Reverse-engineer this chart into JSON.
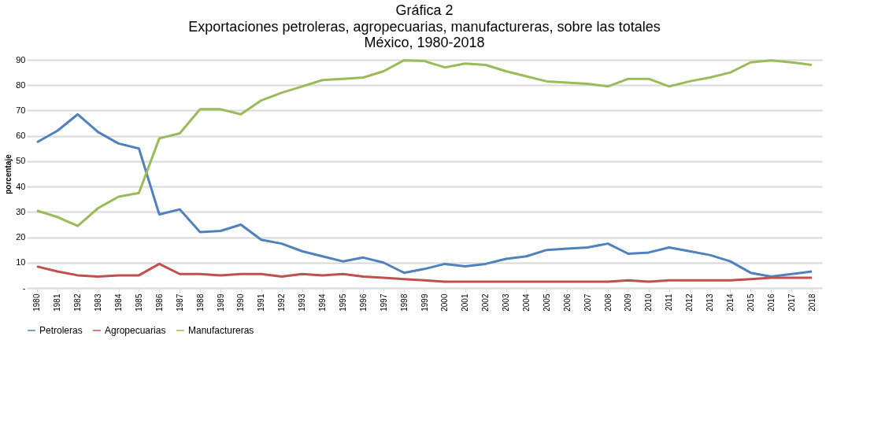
{
  "chart_data": {
    "type": "line",
    "title": "Gráfica 2",
    "subtitle": "Exportaciones petroleras, agropecuarias, manufactureras, sobre las totales\nMéxico, 1980-2018",
    "ylabel": "porcentaje",
    "categories": [
      "1980",
      "1981",
      "1982",
      "1983",
      "1984",
      "1985",
      "1986",
      "1987",
      "1988",
      "1989",
      "1990",
      "1991",
      "1992",
      "1993",
      "1994",
      "1995",
      "1996",
      "1997",
      "1998",
      "1999",
      "2000",
      "2001",
      "2002",
      "2003",
      "2004",
      "2005",
      "2006",
      "2007",
      "2008",
      "2009",
      "2010",
      "2011",
      "2012",
      "2013",
      "2014",
      "2015",
      "2016",
      "2017",
      "2018"
    ],
    "series": [
      {
        "name": "Petroleras",
        "color": "#4f81bd",
        "values": [
          57.5,
          62,
          68.5,
          61.5,
          57,
          55,
          29,
          31,
          22,
          22.5,
          25,
          19,
          17.5,
          14.5,
          12.5,
          10.5,
          12,
          10,
          6,
          7.5,
          9.5,
          8.5,
          9.5,
          11.5,
          12.5,
          15,
          15.5,
          16,
          17.5,
          13.5,
          14,
          16,
          14.5,
          13,
          10.5,
          6,
          4.5,
          5.5,
          6.5
        ]
      },
      {
        "name": "Agropecuarias",
        "color": "#c0504d",
        "values": [
          8.5,
          6.5,
          5,
          4.5,
          5,
          5,
          9.5,
          5.5,
          5.5,
          5,
          5.5,
          5.5,
          4.5,
          5.5,
          5,
          5.5,
          4.5,
          4,
          3.5,
          3,
          2.5,
          2.5,
          2.5,
          2.5,
          2.5,
          2.5,
          2.5,
          2.5,
          2.5,
          3,
          2.5,
          3,
          3,
          3,
          3,
          3.5,
          4,
          4,
          4
        ]
      },
      {
        "name": "Manufactureras",
        "color": "#9bbb59",
        "values": [
          30.5,
          28,
          24.5,
          31.5,
          36,
          37.5,
          59,
          61,
          70.5,
          70.5,
          68.5,
          74,
          77,
          79.5,
          82,
          82.5,
          83,
          85.5,
          89.8,
          89.5,
          87,
          88.5,
          88,
          85.5,
          83.5,
          81.5,
          81,
          80.5,
          79.5,
          82.5,
          82.5,
          79.5,
          81.5,
          83,
          85,
          89,
          89.8,
          89,
          88
        ]
      }
    ],
    "ylim": [
      0,
      90
    ],
    "yticks": [
      {
        "value": 0,
        "label": "-"
      },
      10,
      20,
      30,
      40,
      50,
      60,
      70,
      80,
      90
    ],
    "grid": "y",
    "legend": "bottom",
    "marker": "none",
    "line_style": "solid"
  }
}
